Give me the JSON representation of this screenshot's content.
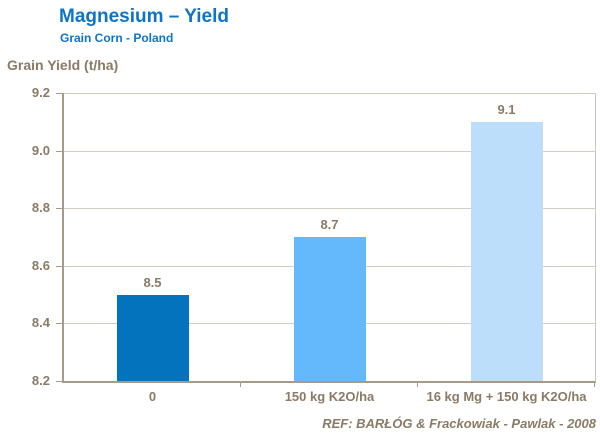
{
  "header": {
    "title": "Magnesium – Yield",
    "subtitle": "Grain Corn - Poland"
  },
  "footer": {
    "reference": "REF:  BARŁÓG & Frackowiak - Pawlak - 2008"
  },
  "chart_data": {
    "type": "bar",
    "title": "Magnesium – Yield",
    "subtitle": "Grain Corn - Poland",
    "ylabel": "Grain Yield (t/ha)",
    "xlabel": "",
    "categories": [
      "0",
      "150 kg K2O/ha",
      "16 kg Mg + 150 kg K2O/ha"
    ],
    "values": [
      8.5,
      8.7,
      9.1
    ],
    "value_labels": [
      "8.5",
      "8.7",
      "9.1"
    ],
    "ylim": [
      8.2,
      9.2
    ],
    "ytick_labels": [
      "9.2",
      "9.0",
      "8.8",
      "8.6",
      "8.4",
      "8.2"
    ],
    "grid": true,
    "legend": false,
    "bar_colors": [
      "#0473be",
      "#64b9fc",
      "#bcdefb"
    ]
  },
  "colors": {
    "title_blue": "#0d74c7",
    "text_brown": "#8a7a66",
    "axis": "#a79a88",
    "grid": "#d2ccc2",
    "plot_border": "#cdc5ba"
  }
}
